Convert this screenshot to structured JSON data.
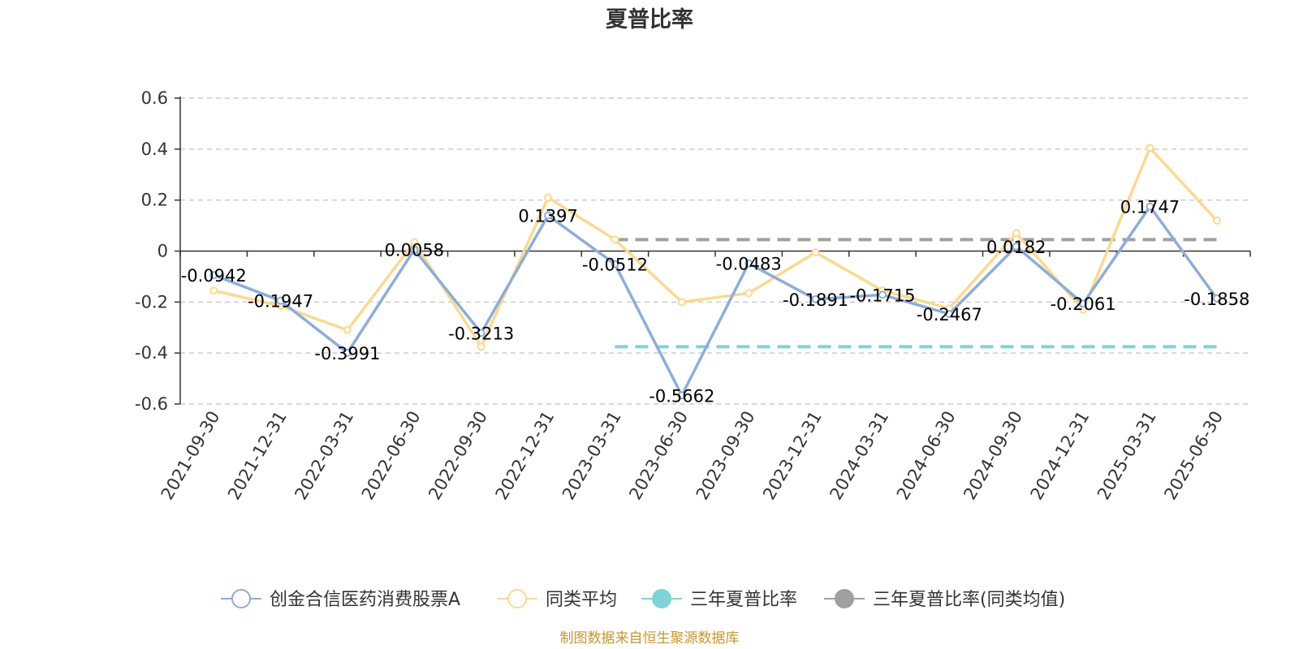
{
  "chart_data": {
    "type": "line",
    "title": "夏普比率",
    "x": [
      "2021-09-30",
      "2021-12-31",
      "2022-03-31",
      "2022-06-30",
      "2022-09-30",
      "2022-12-31",
      "2023-03-31",
      "2023-06-30",
      "2023-09-30",
      "2023-12-31",
      "2024-03-31",
      "2024-06-30",
      "2024-09-30",
      "2024-12-31",
      "2025-03-31",
      "2025-06-30"
    ],
    "ylim": [
      -0.6,
      0.6
    ],
    "yticks": [
      0.6,
      0.4,
      0.2,
      0,
      -0.2,
      -0.4,
      -0.6
    ],
    "ytick_labels": [
      "0.6",
      "0.4",
      "0.2",
      "0",
      "-0.2",
      "-0.4",
      "-0.6"
    ],
    "grid": true,
    "legend_position": "bottom",
    "series": [
      {
        "name": "创金合信医药消费股票A",
        "color": "#8eadd8",
        "values": [
          -0.0942,
          -0.1947,
          -0.3991,
          0.0058,
          -0.3213,
          0.1397,
          -0.0512,
          -0.5662,
          -0.0483,
          -0.1891,
          -0.1715,
          -0.2467,
          0.0182,
          -0.2061,
          0.1747,
          -0.1858
        ],
        "labels": [
          "-0.0942",
          "-0.1947",
          "-0.3991",
          "0.0058",
          "-0.3213",
          "0.1397",
          "-0.0512",
          "-0.5662",
          "-0.0483",
          "-0.1891",
          "-0.1715",
          "-0.2467",
          "0.0182",
          "-0.2061",
          "0.1747",
          "-0.1858"
        ]
      },
      {
        "name": "同类平均",
        "color": "#fbd992",
        "values": [
          -0.155,
          -0.215,
          -0.31,
          0.035,
          -0.375,
          0.21,
          0.045,
          -0.2,
          -0.165,
          -0.005,
          -0.155,
          -0.225,
          0.07,
          -0.23,
          0.405,
          0.12
        ]
      },
      {
        "name": "三年夏普比率",
        "color": "#7dd3d8",
        "style": "dashed",
        "x_start": "2023-03-31",
        "x_end": "2025-06-30",
        "value": -0.375
      },
      {
        "name": "三年夏普比率(同类均值)",
        "color": "#a0a0a0",
        "style": "dashed",
        "x_start": "2023-03-31",
        "x_end": "2025-06-30",
        "value": 0.045
      }
    ]
  },
  "source_note": "制图数据来自恒生聚源数据库"
}
